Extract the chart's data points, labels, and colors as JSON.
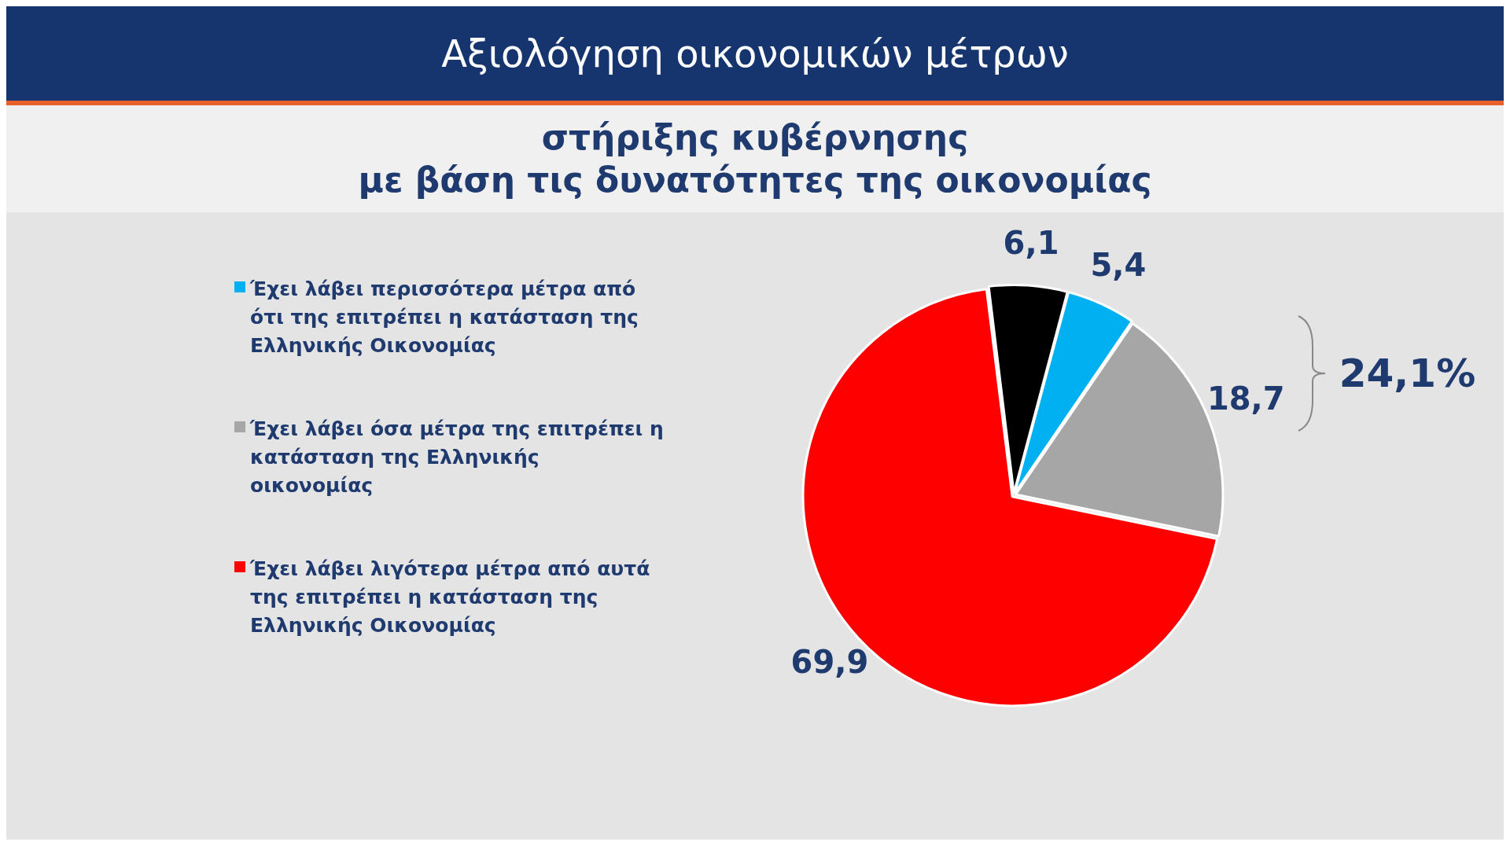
{
  "chart_data": {
    "type": "pie",
    "title": "Αξιολόγηση οικονομικών μέτρων",
    "subtitle": "στήριξης κυβέρνησης\nμε βάση τις δυνατότητες της  οικονομίας",
    "categories": [
      null,
      "Έχει λάβει περισσότερα μέτρα από ότι της επιτρέπει η κατάσταση της Ελληνικής Οικονομίας",
      "Έχει λάβει όσα μέτρα της επιτρέπει η κατάσταση της Ελληνικής οικονομίας",
      "Έχει λάβει λιγότερα μέτρα από αυτά της επιτρέπει η κατάσταση της Ελληνικής Οικονομίας"
    ],
    "values": [
      6.1,
      5.4,
      18.7,
      69.9
    ],
    "colors": [
      "#000000",
      "#00b0f0",
      "#a6a6a6",
      "#ff0000"
    ],
    "value_labels": [
      "6,1",
      "5,4",
      "18,7",
      "69,9"
    ],
    "annotations": [
      "24,1%"
    ],
    "legend": "left"
  }
}
